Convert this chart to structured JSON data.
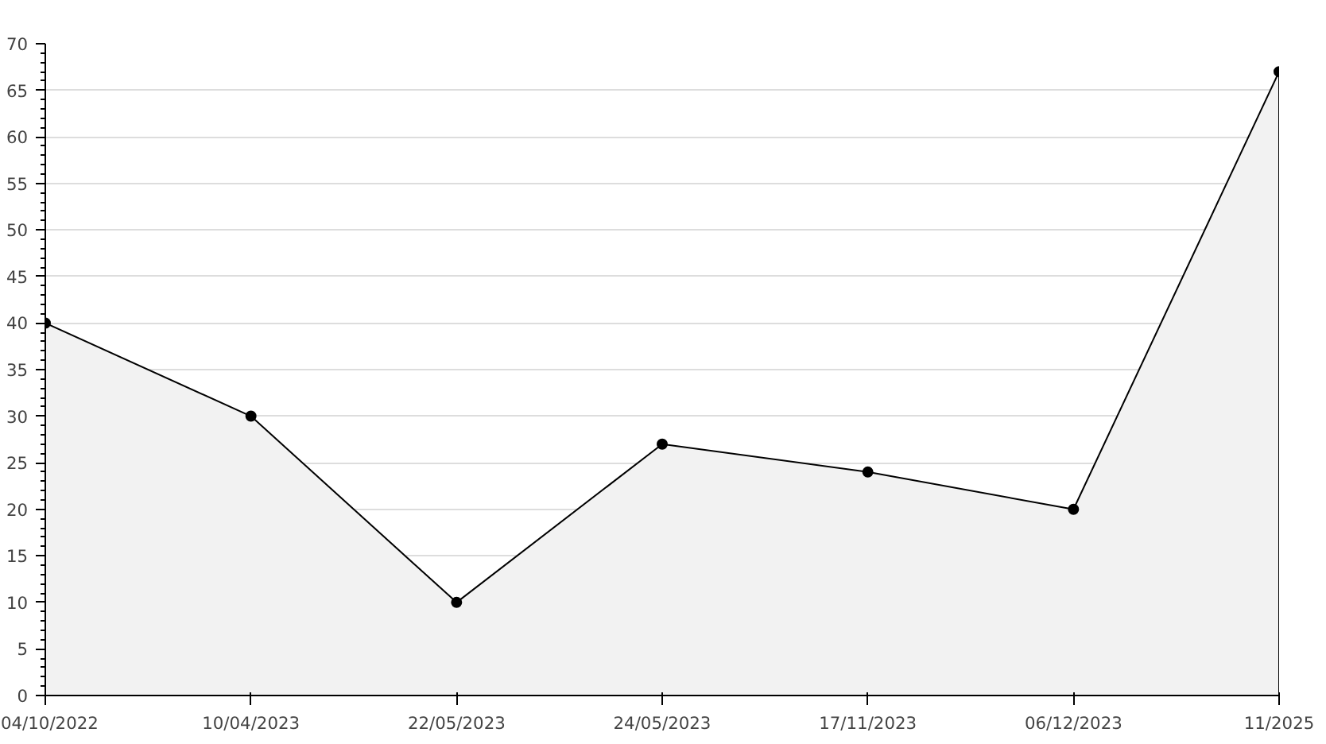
{
  "chart_data": {
    "type": "area",
    "categories": [
      "04/10/2022",
      "10/04/2023",
      "22/05/2023",
      "24/05/2023",
      "17/11/2023",
      "06/12/2023",
      "11/2025"
    ],
    "series": [
      {
        "color": "#000000",
        "values": [
          40,
          30,
          10,
          27,
          24,
          20,
          67
        ]
      }
    ],
    "ylim": [
      0,
      70
    ],
    "yticks": [
      0,
      5,
      10,
      15,
      20,
      25,
      30,
      35,
      40,
      45,
      50,
      55,
      60,
      65,
      70
    ],
    "grid": "y",
    "marker": "circle",
    "line_style": "solid"
  }
}
